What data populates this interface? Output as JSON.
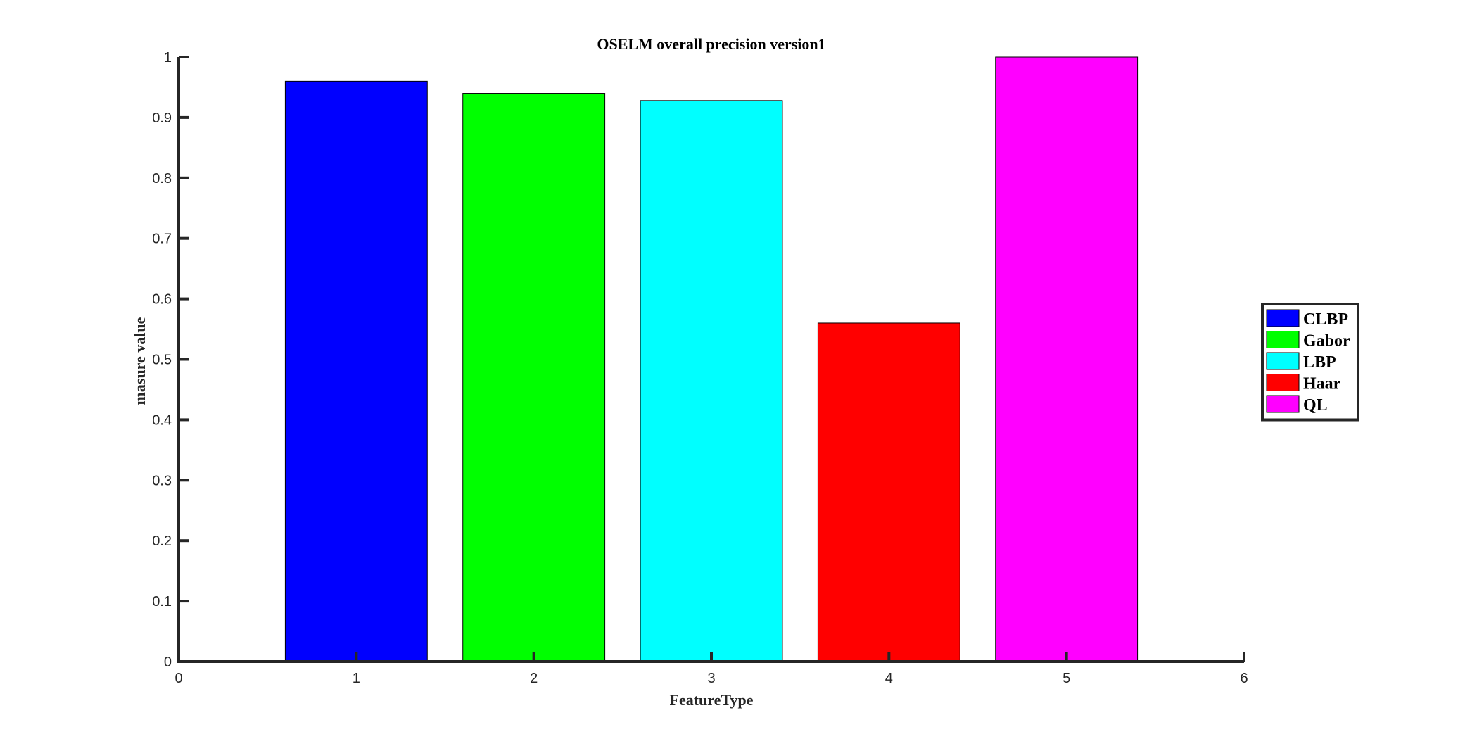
{
  "chart_data": {
    "type": "bar",
    "title": "OSELM overall precision version1",
    "xlabel": "FeatureType",
    "ylabel": "masure value",
    "xlim": [
      0,
      6
    ],
    "ylim": [
      0,
      1
    ],
    "xticks": [
      "0",
      "1",
      "2",
      "3",
      "4",
      "5",
      "6"
    ],
    "yticks": [
      "0",
      "0.1",
      "0.2",
      "0.3",
      "0.4",
      "0.5",
      "0.6",
      "0.7",
      "0.8",
      "0.9",
      "1"
    ],
    "grid": false,
    "legend_position": "right",
    "series": [
      {
        "name": "CLBP",
        "x": 1,
        "value": 0.96,
        "color": "#0000ff"
      },
      {
        "name": "Gabor",
        "x": 2,
        "value": 0.94,
        "color": "#00ff00"
      },
      {
        "name": "LBP",
        "x": 3,
        "value": 0.928,
        "color": "#00ffff"
      },
      {
        "name": "Haar",
        "x": 4,
        "value": 0.56,
        "color": "#ff0000"
      },
      {
        "name": "QL",
        "x": 5,
        "value": 1.0,
        "color": "#ff00ff"
      }
    ]
  }
}
